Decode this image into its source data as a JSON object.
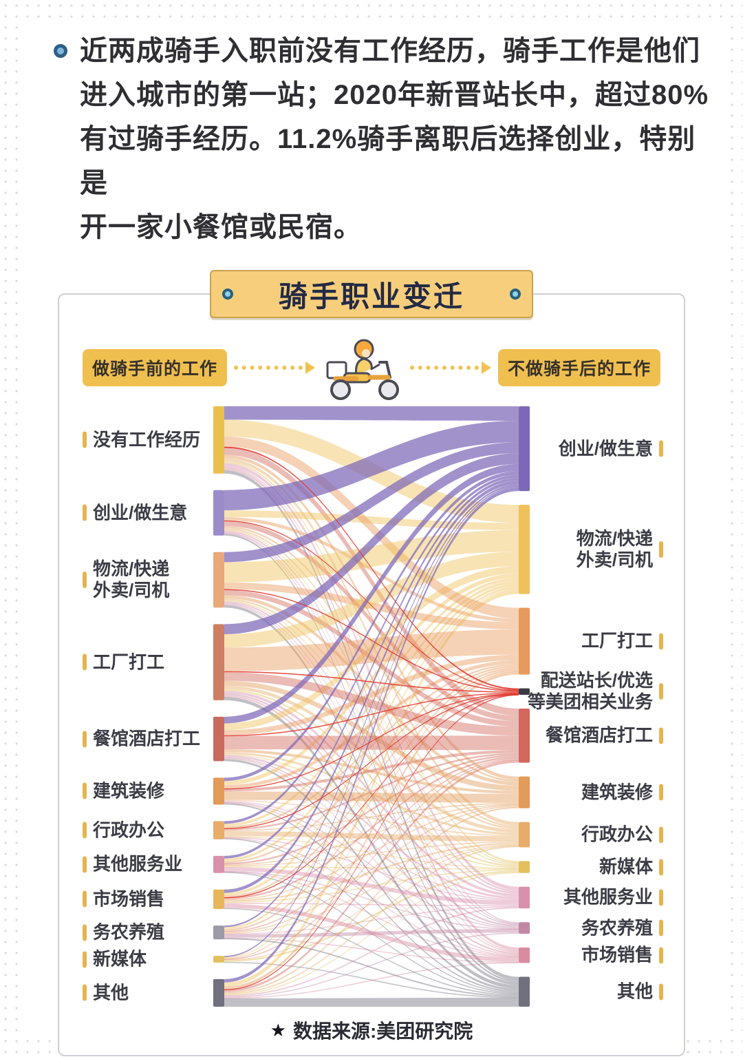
{
  "intro": {
    "lines": [
      "近两成骑手入职前没有工作经历，骑手工作是他们",
      "进入城市的第一站；2020年新晋站长中，超过80%",
      "有过骑手经历。11.2%骑手离职后选择创业，特别是",
      "开一家小餐馆或民宿。"
    ]
  },
  "chart_data": {
    "type": "sankey",
    "title": "骑手职业变迁",
    "left_header": "做骑手前的工作",
    "right_header": "不做骑手后的工作",
    "source_star": "★",
    "source_label": "数据来源:美团研究院",
    "orientation": "left-to-right",
    "values_unit": "relative flow share, estimated from ribbon widths",
    "link_color_rule": "links colored by target node; flows into Meituan-related roles highlighted red",
    "link_colors": {
      "meituan_highlight": "#e0392e"
    },
    "left_nodes": [
      {
        "label": [
          "没有工作经历"
        ],
        "color": "#e9c04c"
      },
      {
        "label": [
          "创业/做生意"
        ],
        "color": "#9b8cc9"
      },
      {
        "label": [
          "物流/快递",
          "外卖/司机"
        ],
        "color": "#e8a87a"
      },
      {
        "label": [
          "工厂打工"
        ],
        "color": "#ce7e62"
      },
      {
        "label": [
          "餐馆酒店打工"
        ],
        "color": "#c96a5e"
      },
      {
        "label": [
          "建筑装修"
        ],
        "color": "#e29b58"
      },
      {
        "label": [
          "行政办公"
        ],
        "color": "#e7ac6a"
      },
      {
        "label": [
          "其他服务业"
        ],
        "color": "#d990ac"
      },
      {
        "label": [
          "市场销售"
        ],
        "color": "#e6b75a"
      },
      {
        "label": [
          "务农养殖"
        ],
        "color": "#9b9ba8"
      },
      {
        "label": [
          "新媒体"
        ],
        "color": "#e3c05e"
      },
      {
        "label": [
          "其他"
        ],
        "color": "#70707e"
      }
    ],
    "right_nodes": [
      {
        "label": [
          "创业/做生意"
        ],
        "color": "#7d68b8"
      },
      {
        "label": [
          "物流/快递",
          "外卖/司机"
        ],
        "color": "#efc05c"
      },
      {
        "label": [
          "工厂打工"
        ],
        "color": "#e8995c"
      },
      {
        "label": [
          "配送站长/优选",
          "等美团相关业务"
        ],
        "color": "#3a3a44"
      },
      {
        "label": [
          "餐馆酒店打工"
        ],
        "color": "#d2685e"
      },
      {
        "label": [
          "建筑装修"
        ],
        "color": "#e29b58"
      },
      {
        "label": [
          "行政办公"
        ],
        "color": "#e7ac6a"
      },
      {
        "label": [
          "新媒体"
        ],
        "color": "#e3c05e"
      },
      {
        "label": [
          "其他服务业"
        ],
        "color": "#d990ac"
      },
      {
        "label": [
          "务农养殖"
        ],
        "color": "#c287a5"
      },
      {
        "label": [
          "市场销售"
        ],
        "color": "#d98ba0"
      },
      {
        "label": [
          "其他"
        ],
        "color": "#70707e"
      }
    ],
    "links": [
      [
        0,
        0,
        4
      ],
      [
        0,
        1,
        5
      ],
      [
        0,
        2,
        3
      ],
      [
        0,
        3,
        0.4
      ],
      [
        0,
        4,
        2
      ],
      [
        0,
        5,
        1
      ],
      [
        0,
        6,
        1
      ],
      [
        0,
        7,
        0.5
      ],
      [
        0,
        8,
        1
      ],
      [
        0,
        9,
        0.3
      ],
      [
        0,
        10,
        0.8
      ],
      [
        0,
        11,
        1
      ],
      [
        1,
        0,
        6
      ],
      [
        1,
        1,
        2
      ],
      [
        1,
        2,
        1
      ],
      [
        1,
        3,
        0.2
      ],
      [
        1,
        4,
        1.5
      ],
      [
        1,
        5,
        0.5
      ],
      [
        1,
        6,
        0.5
      ],
      [
        1,
        7,
        0.3
      ],
      [
        1,
        8,
        0.5
      ],
      [
        1,
        9,
        0.2
      ],
      [
        1,
        10,
        0.3
      ],
      [
        1,
        11,
        0.5
      ],
      [
        2,
        0,
        3
      ],
      [
        2,
        1,
        6
      ],
      [
        2,
        2,
        2
      ],
      [
        2,
        3,
        0.3
      ],
      [
        2,
        4,
        1.5
      ],
      [
        2,
        5,
        1
      ],
      [
        2,
        6,
        0.5
      ],
      [
        2,
        7,
        0.3
      ],
      [
        2,
        8,
        0.5
      ],
      [
        2,
        9,
        0.3
      ],
      [
        2,
        10,
        0.3
      ],
      [
        2,
        11,
        0.8
      ],
      [
        3,
        0,
        3
      ],
      [
        3,
        1,
        4
      ],
      [
        3,
        2,
        7
      ],
      [
        3,
        3,
        0.3
      ],
      [
        3,
        4,
        2.5
      ],
      [
        3,
        5,
        1.5
      ],
      [
        3,
        6,
        1
      ],
      [
        3,
        7,
        0.5
      ],
      [
        3,
        8,
        0.8
      ],
      [
        3,
        9,
        0.5
      ],
      [
        3,
        10,
        0.5
      ],
      [
        3,
        11,
        1
      ],
      [
        4,
        0,
        2
      ],
      [
        4,
        1,
        2
      ],
      [
        4,
        2,
        1.5
      ],
      [
        4,
        3,
        0.2
      ],
      [
        4,
        4,
        4
      ],
      [
        4,
        5,
        0.8
      ],
      [
        4,
        6,
        0.6
      ],
      [
        4,
        7,
        0.3
      ],
      [
        4,
        8,
        0.6
      ],
      [
        4,
        9,
        0.3
      ],
      [
        4,
        10,
        0.3
      ],
      [
        4,
        11,
        0.6
      ],
      [
        5,
        0,
        1
      ],
      [
        5,
        1,
        1.2
      ],
      [
        5,
        2,
        1
      ],
      [
        5,
        3,
        0.1
      ],
      [
        5,
        4,
        0.8
      ],
      [
        5,
        5,
        2.5
      ],
      [
        5,
        6,
        0.3
      ],
      [
        5,
        8,
        0.3
      ],
      [
        5,
        9,
        0.2
      ],
      [
        5,
        10,
        0.2
      ],
      [
        5,
        11,
        0.4
      ],
      [
        6,
        0,
        0.8
      ],
      [
        6,
        1,
        0.8
      ],
      [
        6,
        2,
        0.5
      ],
      [
        6,
        3,
        0.1
      ],
      [
        6,
        4,
        0.5
      ],
      [
        6,
        5,
        0.3
      ],
      [
        6,
        6,
        1.5
      ],
      [
        6,
        7,
        0.2
      ],
      [
        6,
        8,
        0.2
      ],
      [
        6,
        10,
        0.2
      ],
      [
        6,
        11,
        0.3
      ],
      [
        7,
        0,
        0.8
      ],
      [
        7,
        1,
        0.8
      ],
      [
        7,
        2,
        0.5
      ],
      [
        7,
        4,
        0.5
      ],
      [
        7,
        5,
        0.2
      ],
      [
        7,
        6,
        0.3
      ],
      [
        7,
        7,
        0.2
      ],
      [
        7,
        8,
        1.2
      ],
      [
        7,
        9,
        0.1
      ],
      [
        7,
        10,
        0.2
      ],
      [
        7,
        11,
        0.3
      ],
      [
        8,
        0,
        1
      ],
      [
        8,
        1,
        0.8
      ],
      [
        8,
        2,
        0.5
      ],
      [
        8,
        3,
        0.1
      ],
      [
        8,
        4,
        0.5
      ],
      [
        8,
        5,
        0.3
      ],
      [
        8,
        6,
        0.5
      ],
      [
        8,
        7,
        0.3
      ],
      [
        8,
        8,
        0.3
      ],
      [
        8,
        10,
        1.2
      ],
      [
        8,
        11,
        0.3
      ],
      [
        9,
        0,
        0.5
      ],
      [
        9,
        1,
        0.6
      ],
      [
        9,
        2,
        0.5
      ],
      [
        9,
        4,
        0.3
      ],
      [
        9,
        5,
        0.3
      ],
      [
        9,
        6,
        0.2
      ],
      [
        9,
        8,
        0.2
      ],
      [
        9,
        9,
        1
      ],
      [
        9,
        10,
        0.1
      ],
      [
        9,
        11,
        0.4
      ],
      [
        10,
        0,
        0.4
      ],
      [
        10,
        1,
        0.3
      ],
      [
        10,
        2,
        0.2
      ],
      [
        10,
        4,
        0.2
      ],
      [
        10,
        6,
        0.2
      ],
      [
        10,
        7,
        0.5
      ],
      [
        10,
        11,
        0.2
      ],
      [
        11,
        0,
        1
      ],
      [
        11,
        1,
        1.2
      ],
      [
        11,
        2,
        0.8
      ],
      [
        11,
        3,
        0.1
      ],
      [
        11,
        4,
        0.7
      ],
      [
        11,
        5,
        0.4
      ],
      [
        11,
        6,
        0.4
      ],
      [
        11,
        7,
        0.2
      ],
      [
        11,
        8,
        0.4
      ],
      [
        11,
        9,
        0.3
      ],
      [
        11,
        10,
        0.2
      ],
      [
        11,
        11,
        2.5
      ]
    ]
  }
}
